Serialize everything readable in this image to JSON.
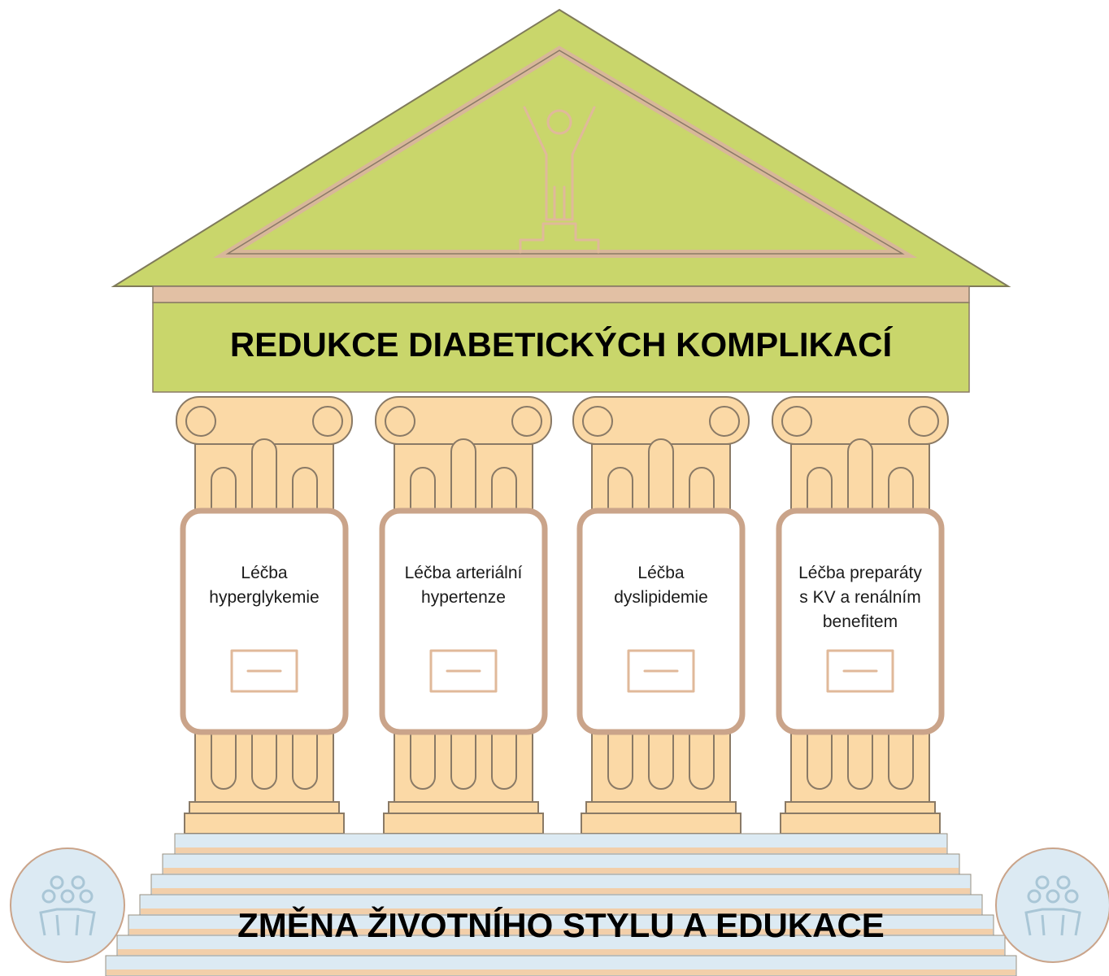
{
  "roof": {
    "title": "REDUKCE DIABETICKÝCH KOMPLIKACÍ"
  },
  "pillars": [
    {
      "lines": [
        "Léčba",
        "hyperglykemie"
      ]
    },
    {
      "lines": [
        "Léčba arteriální",
        "hypertenze"
      ]
    },
    {
      "lines": [
        "Léčba",
        "dyslipidemie"
      ]
    },
    {
      "lines": [
        "Léčba preparáty",
        "s KV a renálním",
        "benefitem"
      ]
    }
  ],
  "base": {
    "title": "ZMĚNA ŽIVOTNÍHO STYLU A EDUKACE"
  }
}
